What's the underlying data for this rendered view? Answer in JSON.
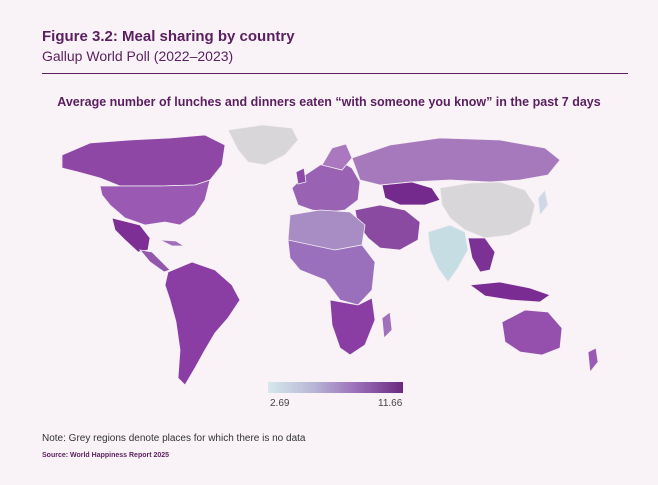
{
  "header": {
    "title": "Figure 3.2: Meal sharing by country",
    "subtitle": "Gallup World Poll (2022–2023)"
  },
  "map": {
    "title": "Average number of lunches and dinners eaten “with someone you know” in the past 7 days",
    "no_data_color": "#d9d6d9",
    "scale_colors": [
      "#d6e9ec",
      "#b8b6d6",
      "#9a6cb8",
      "#6b2a7e"
    ]
  },
  "legend": {
    "min_label": "2.69",
    "max_label": "11.66"
  },
  "footer": {
    "note": "Note: Grey regions denote places for which there is no data",
    "source": "Source: World Happiness Report 2025"
  }
}
